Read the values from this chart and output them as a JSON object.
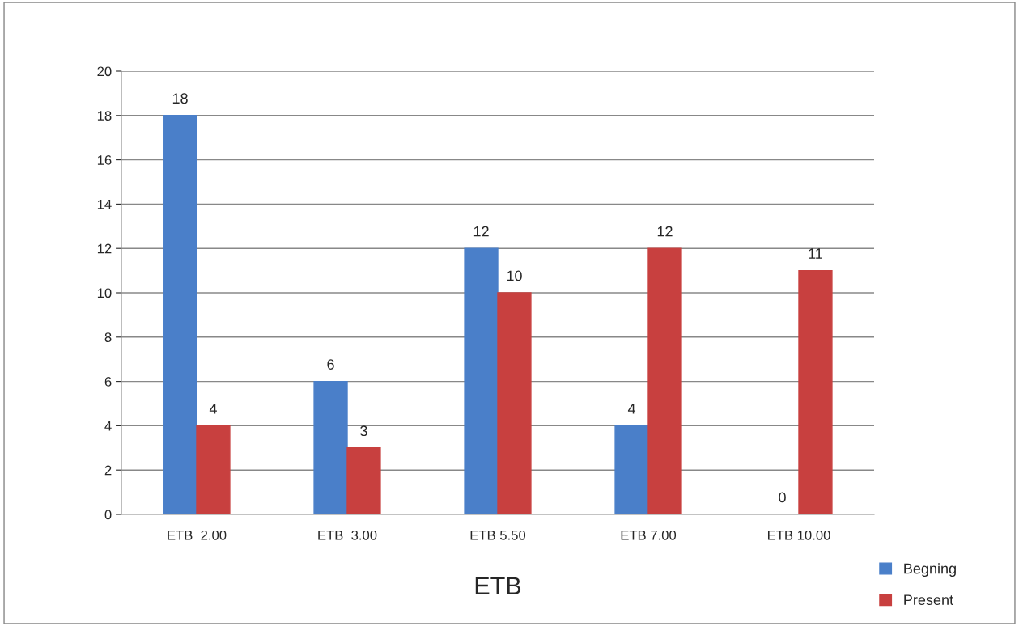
{
  "chart_data": {
    "type": "bar",
    "xlabel": "ETB",
    "categories": [
      "ETB  2.00",
      "ETB  3.00",
      "ETB 5.50",
      "ETB 7.00",
      "ETB 10.00"
    ],
    "series": [
      {
        "name": "Begning",
        "color": "#4a7fc9",
        "values": [
          18,
          6,
          12,
          4,
          0
        ]
      },
      {
        "name": "Present",
        "color": "#c8403f",
        "values": [
          4,
          3,
          10,
          12,
          11
        ]
      }
    ],
    "ylim": [
      0,
      20
    ],
    "yticks": [
      0,
      2,
      4,
      6,
      8,
      10,
      12,
      14,
      16,
      18,
      20
    ],
    "grid": "y",
    "legend": "bottom right",
    "data_labels": true
  }
}
